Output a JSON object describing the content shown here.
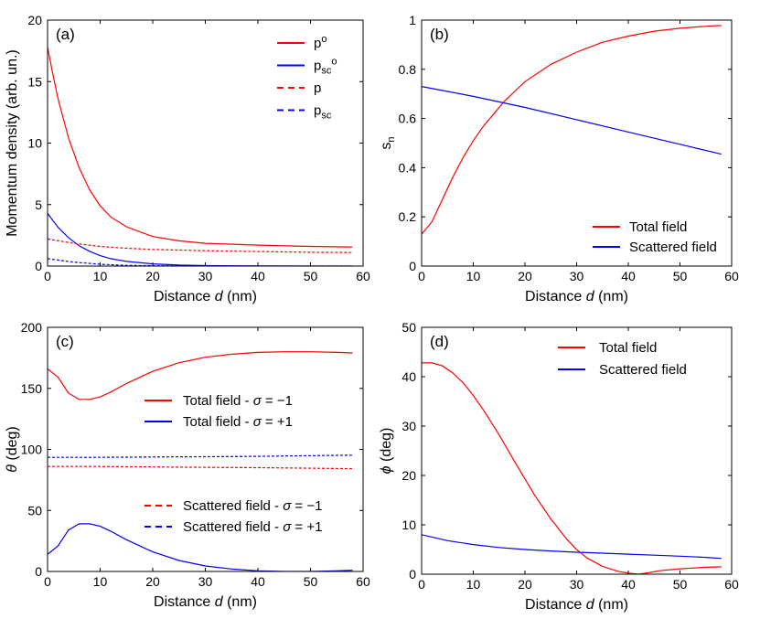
{
  "chart_data": [
    {
      "type": "line",
      "panel_label": "(a)",
      "title": "",
      "xlabel": "Distance d (nm)",
      "xlabel_pre": "Distance ",
      "xlabel_var": "d",
      "xlabel_post": " (nm)",
      "ylabel": "Momentum density (arb. un.)",
      "xlim": [
        0,
        60
      ],
      "ylim": [
        0,
        20
      ],
      "xticks": [
        "0",
        "10",
        "20",
        "30",
        "40",
        "50",
        "60"
      ],
      "yticks": [
        "0",
        "5",
        "10",
        "15",
        "20"
      ],
      "legend_position": "top-right",
      "series": [
        {
          "name": "p°",
          "legend_main": "p",
          "legend_sub": "",
          "legend_sup": "o",
          "color": "#ff0000",
          "dash": "solid",
          "x": [
            0,
            1,
            2,
            4,
            6,
            8,
            10,
            12,
            15,
            20,
            25,
            30,
            40,
            50,
            58
          ],
          "y": [
            17.8,
            15.6,
            13.6,
            10.4,
            8.0,
            6.2,
            4.9,
            4.0,
            3.2,
            2.4,
            2.05,
            1.85,
            1.7,
            1.6,
            1.55
          ]
        },
        {
          "name": "psc°",
          "legend_main": "p",
          "legend_sub": "sc",
          "legend_sup": "o",
          "color": "#0000ff",
          "dash": "solid",
          "x": [
            0,
            1,
            2,
            4,
            6,
            8,
            10,
            12,
            15,
            20,
            25,
            30,
            40,
            50,
            58
          ],
          "y": [
            4.3,
            3.7,
            3.15,
            2.3,
            1.65,
            1.2,
            0.85,
            0.6,
            0.38,
            0.18,
            0.08,
            0.04,
            0.01,
            0.0,
            0.0
          ]
        },
        {
          "name": "p",
          "legend_main": "p",
          "legend_sub": "",
          "legend_sup": "",
          "color": "#ff0000",
          "dash": "dashed",
          "x": [
            0,
            5,
            10,
            15,
            20,
            30,
            40,
            50,
            58
          ],
          "y": [
            2.2,
            1.85,
            1.6,
            1.45,
            1.35,
            1.25,
            1.18,
            1.12,
            1.1
          ]
        },
        {
          "name": "psc",
          "legend_main": "p",
          "legend_sub": "sc",
          "legend_sup": "",
          "color": "#0000ff",
          "dash": "dashed",
          "x": [
            0,
            5,
            10,
            15,
            20,
            30,
            40,
            50,
            58
          ],
          "y": [
            0.6,
            0.32,
            0.15,
            0.06,
            0.02,
            0.005,
            0.0,
            0.0,
            0.0
          ]
        }
      ]
    },
    {
      "type": "line",
      "panel_label": "(b)",
      "title": "",
      "xlabel": "Distance d (nm)",
      "xlabel_pre": "Distance ",
      "xlabel_var": "d",
      "xlabel_post": " (nm)",
      "ylabel": "sn",
      "ylabel_main": "s",
      "ylabel_sub": "n",
      "xlim": [
        0,
        60
      ],
      "ylim": [
        0,
        1
      ],
      "xticks": [
        "0",
        "10",
        "20",
        "30",
        "40",
        "50",
        "60"
      ],
      "yticks": [
        "0",
        "0.2",
        "0.4",
        "0.6",
        "0.8",
        "1"
      ],
      "legend_position": "bottom-right",
      "series": [
        {
          "name": "Total field",
          "color": "#ff0000",
          "dash": "solid",
          "x": [
            0,
            2,
            4,
            6,
            8,
            10,
            12,
            14,
            16,
            18,
            20,
            25,
            30,
            35,
            40,
            45,
            50,
            55,
            58
          ],
          "y": [
            0.13,
            0.18,
            0.27,
            0.36,
            0.44,
            0.51,
            0.57,
            0.62,
            0.67,
            0.71,
            0.75,
            0.82,
            0.87,
            0.91,
            0.935,
            0.955,
            0.967,
            0.975,
            0.978
          ]
        },
        {
          "name": "Scattered field",
          "color": "#0000ff",
          "dash": "solid",
          "x": [
            0,
            10,
            20,
            30,
            40,
            50,
            58
          ],
          "y": [
            0.73,
            0.69,
            0.645,
            0.595,
            0.545,
            0.495,
            0.455
          ]
        }
      ]
    },
    {
      "type": "line",
      "panel_label": "(c)",
      "title": "",
      "xlabel": "Distance d (nm)",
      "xlabel_pre": "Distance ",
      "xlabel_var": "d",
      "xlabel_post": " (nm)",
      "ylabel": "θ (deg)",
      "ylabel_var": "θ",
      "ylabel_rest": " (deg)",
      "xlim": [
        0,
        60
      ],
      "ylim": [
        0,
        200
      ],
      "xticks": [
        "0",
        "10",
        "20",
        "30",
        "40",
        "50",
        "60"
      ],
      "yticks": [
        "0",
        "50",
        "100",
        "150",
        "200"
      ],
      "legend_position": "center-right",
      "series": [
        {
          "name": "Total field - σ = −1",
          "legend_pre": "Total field - ",
          "legend_eq": " = −1",
          "color": "#ff0000",
          "dash": "solid",
          "x": [
            0,
            2,
            4,
            6,
            8,
            10,
            12,
            15,
            20,
            25,
            30,
            35,
            40,
            45,
            50,
            55,
            58
          ],
          "y": [
            166,
            159,
            146,
            141,
            141,
            143,
            147,
            154,
            164,
            171,
            175.5,
            178,
            179.5,
            180,
            180,
            179.5,
            179
          ]
        },
        {
          "name": "Total field - σ = +1",
          "legend_pre": "Total field - ",
          "legend_eq": " = +1",
          "color": "#0000ff",
          "dash": "solid",
          "x": [
            0,
            2,
            4,
            6,
            8,
            10,
            12,
            15,
            20,
            25,
            30,
            35,
            40,
            45,
            50,
            55,
            58
          ],
          "y": [
            14,
            21,
            34,
            39,
            39,
            37,
            33,
            26,
            16,
            9,
            4.5,
            2,
            0.5,
            0,
            0,
            0.5,
            1
          ]
        },
        {
          "name": "Scattered field - σ = −1",
          "legend_pre": "Scattered field - ",
          "legend_eq": " = −1",
          "color": "#ff0000",
          "dash": "dashed",
          "x": [
            0,
            10,
            20,
            30,
            40,
            50,
            58
          ],
          "y": [
            86,
            86,
            85.6,
            85.3,
            85,
            84.6,
            84.2
          ]
        },
        {
          "name": "Scattered field - σ = +1",
          "legend_pre": "Scattered field - ",
          "legend_eq": " = +1",
          "color": "#0000ff",
          "dash": "dashed",
          "x": [
            0,
            10,
            20,
            30,
            40,
            50,
            58
          ],
          "y": [
            93.5,
            93.5,
            93.8,
            94,
            94.3,
            94.8,
            95.3
          ]
        }
      ]
    },
    {
      "type": "line",
      "panel_label": "(d)",
      "title": "",
      "xlabel": "Distance d (nm)",
      "xlabel_pre": "Distance ",
      "xlabel_var": "d",
      "xlabel_post": " (nm)",
      "ylabel": "ϕ (deg)",
      "ylabel_var": "ϕ",
      "ylabel_rest": " (deg)",
      "xlim": [
        0,
        60
      ],
      "ylim": [
        0,
        50
      ],
      "xticks": [
        "0",
        "10",
        "20",
        "30",
        "40",
        "50",
        "60"
      ],
      "yticks": [
        "0",
        "10",
        "20",
        "30",
        "40",
        "50"
      ],
      "legend_position": "top-right",
      "series": [
        {
          "name": "Total field",
          "color": "#ff0000",
          "dash": "solid",
          "x": [
            0,
            2,
            4,
            6,
            8,
            10,
            12,
            15,
            18,
            20,
            22,
            25,
            28,
            30,
            32,
            35,
            38,
            40,
            42,
            44,
            46,
            50,
            55,
            58
          ],
          "y": [
            42.8,
            42.8,
            42.2,
            40.8,
            38.8,
            36.2,
            33.2,
            28.2,
            22.8,
            19.3,
            15.8,
            11.2,
            7.2,
            5.0,
            3.3,
            1.6,
            0.6,
            0.2,
            0.0,
            0.3,
            0.7,
            1.1,
            1.4,
            1.5
          ]
        },
        {
          "name": "Scattered field",
          "color": "#0000ff",
          "dash": "solid",
          "x": [
            0,
            5,
            10,
            15,
            20,
            25,
            30,
            35,
            40,
            45,
            50,
            55,
            58
          ],
          "y": [
            8.0,
            6.8,
            6.0,
            5.4,
            5.0,
            4.7,
            4.45,
            4.25,
            4.05,
            3.85,
            3.65,
            3.4,
            3.2
          ]
        }
      ]
    }
  ]
}
